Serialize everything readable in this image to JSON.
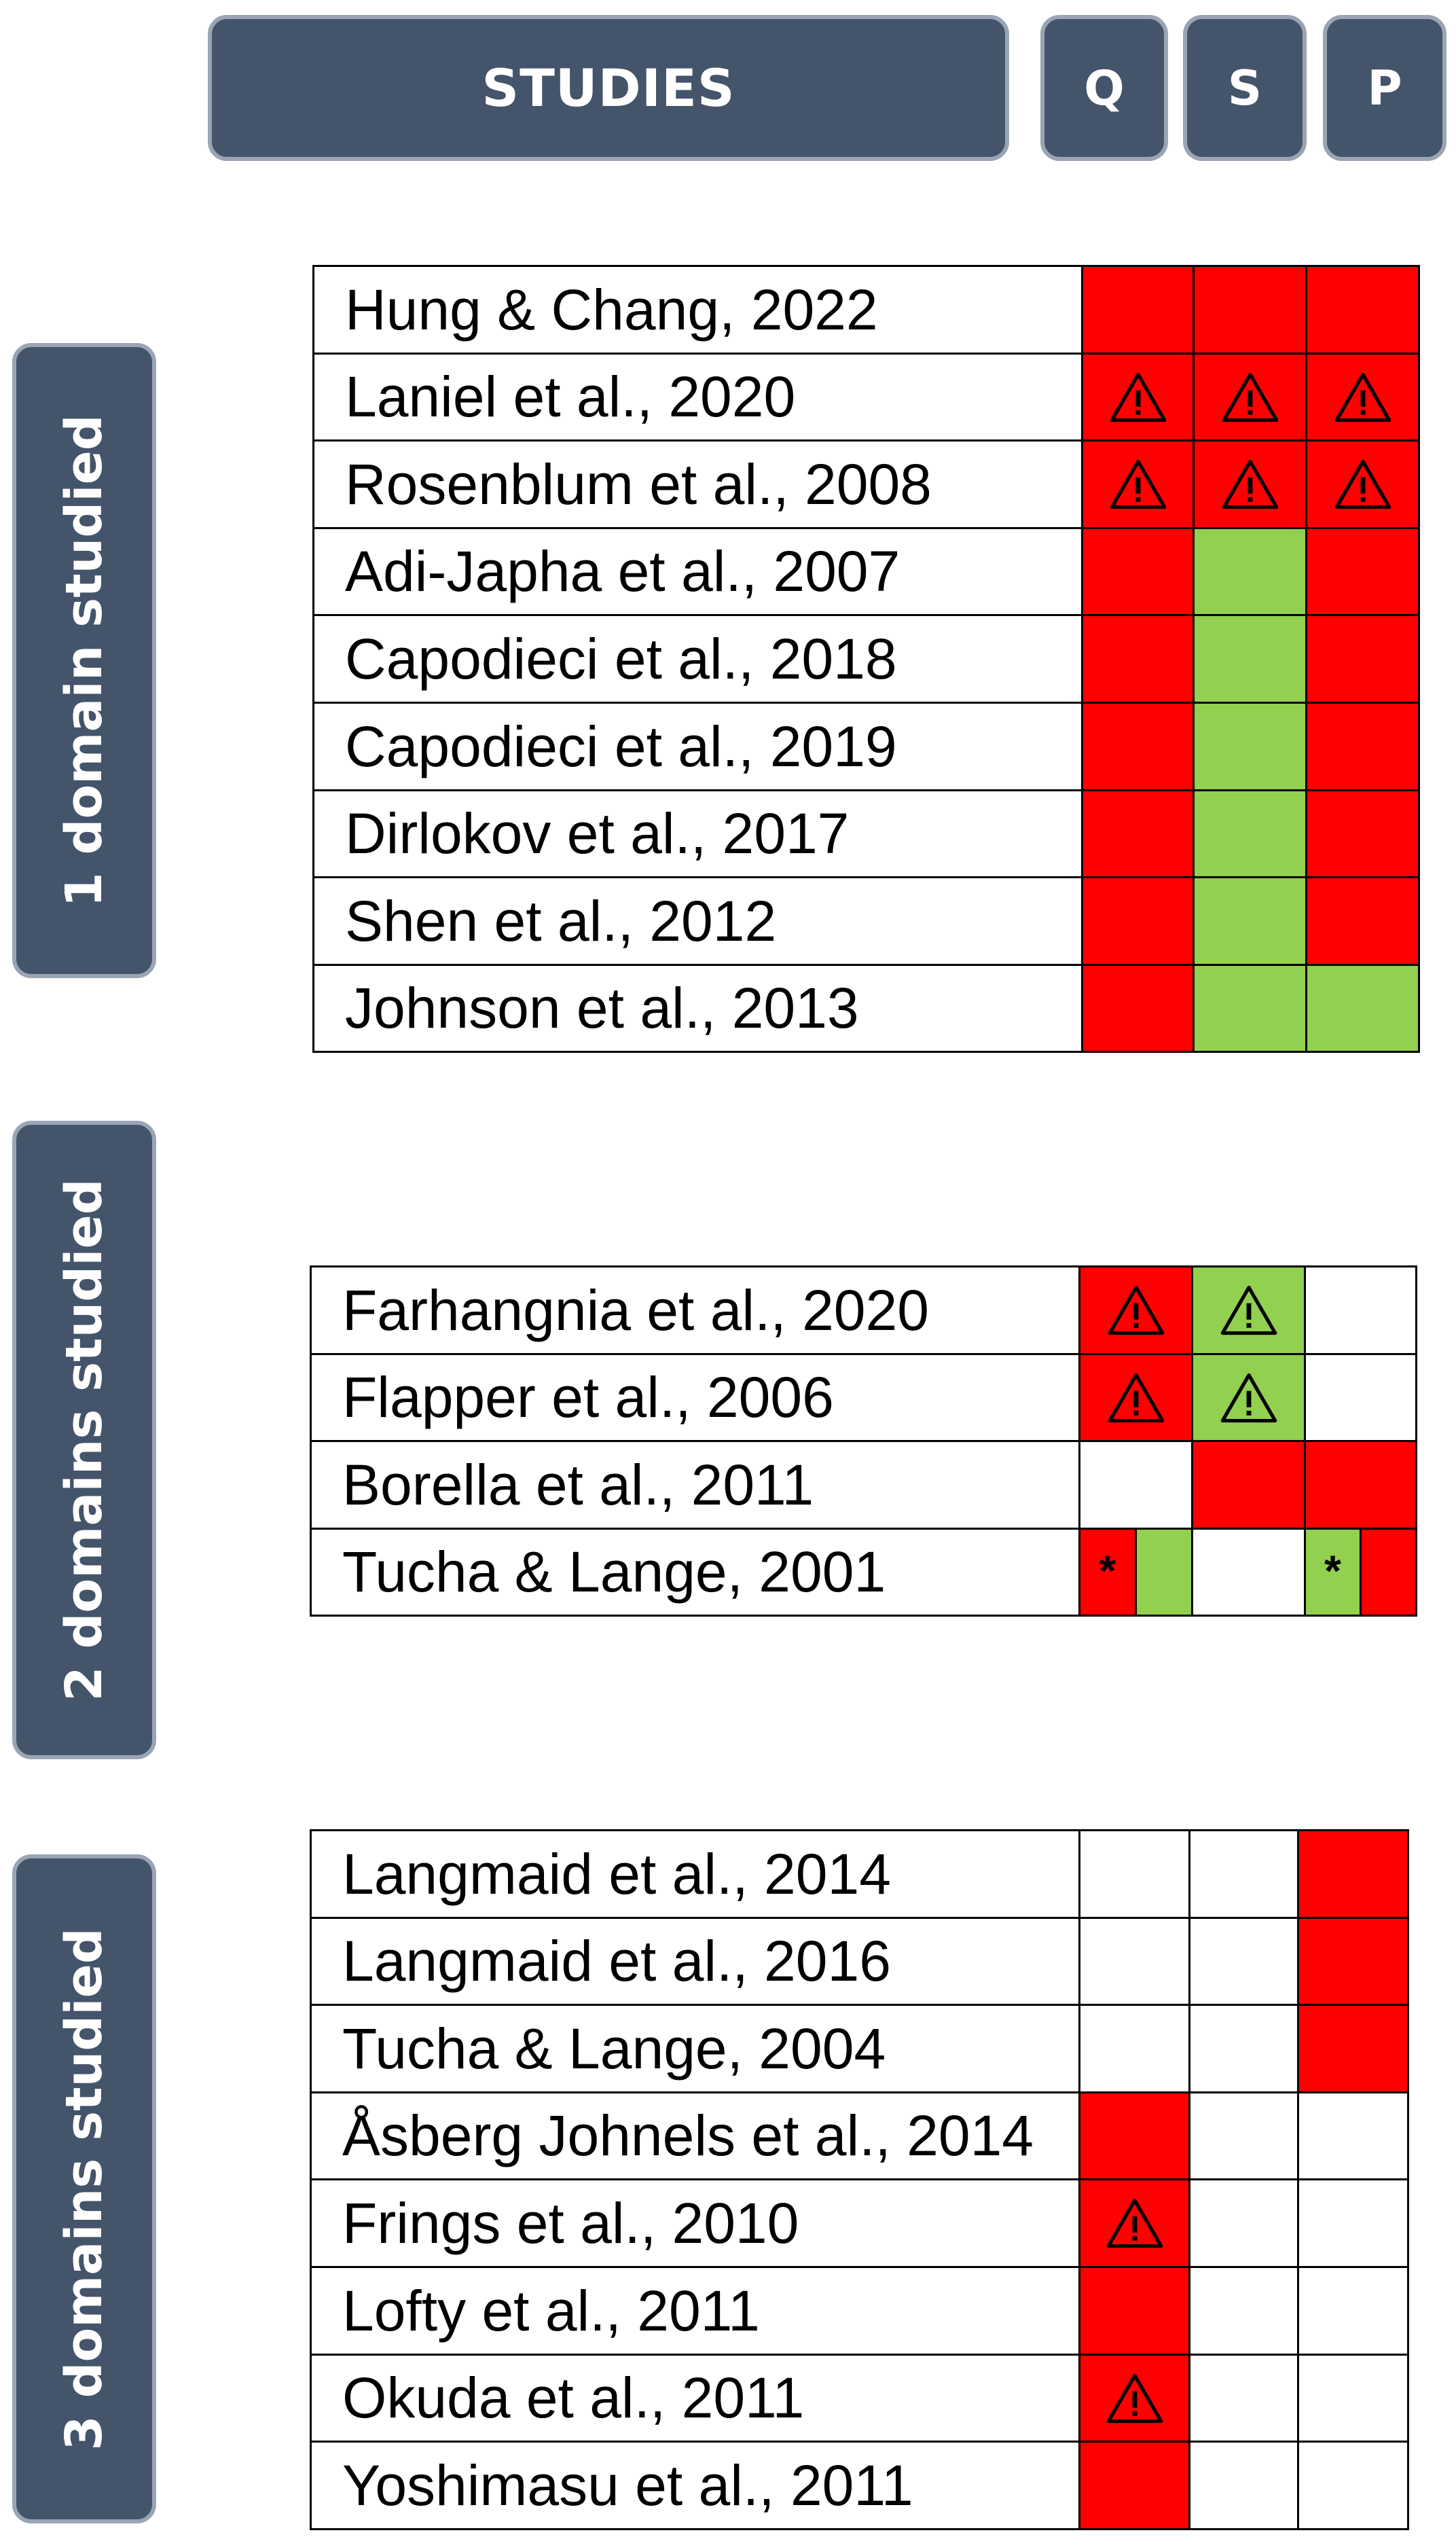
{
  "headers": {
    "studies": "STUDIES",
    "q": "Q",
    "s": "S",
    "p": "P"
  },
  "legend": {
    "red": "#ff0000",
    "green": "#92d050",
    "white": "#ffffff",
    "warning_icon": "warning-triangle-icon",
    "asterisk": "*"
  },
  "sections": [
    {
      "label": "1 domain studied",
      "rows": [
        {
          "study": "Hung & Chang, 2022",
          "q": {
            "fill": "red"
          },
          "s": {
            "fill": "red"
          },
          "p": {
            "fill": "red"
          }
        },
        {
          "study": "Laniel et al., 2020",
          "q": {
            "fill": "red",
            "mark": "warning"
          },
          "s": {
            "fill": "red",
            "mark": "warning"
          },
          "p": {
            "fill": "red",
            "mark": "warning"
          }
        },
        {
          "study": "Rosenblum et al., 2008",
          "q": {
            "fill": "red",
            "mark": "warning"
          },
          "s": {
            "fill": "red",
            "mark": "warning"
          },
          "p": {
            "fill": "red",
            "mark": "warning"
          }
        },
        {
          "study": "Adi-Japha et al., 2007",
          "q": {
            "fill": "red"
          },
          "s": {
            "fill": "green"
          },
          "p": {
            "fill": "red"
          }
        },
        {
          "study": "Capodieci et al., 2018",
          "q": {
            "fill": "red"
          },
          "s": {
            "fill": "green"
          },
          "p": {
            "fill": "red"
          }
        },
        {
          "study": "Capodieci et al., 2019",
          "q": {
            "fill": "red"
          },
          "s": {
            "fill": "green"
          },
          "p": {
            "fill": "red"
          }
        },
        {
          "study": "Dirlokov et al., 2017",
          "q": {
            "fill": "red"
          },
          "s": {
            "fill": "green"
          },
          "p": {
            "fill": "red"
          }
        },
        {
          "study": "Shen et al., 2012",
          "q": {
            "fill": "red"
          },
          "s": {
            "fill": "green"
          },
          "p": {
            "fill": "red"
          }
        },
        {
          "study": "Johnson et al., 2013",
          "q": {
            "fill": "red"
          },
          "s": {
            "fill": "green"
          },
          "p": {
            "fill": "green"
          }
        }
      ]
    },
    {
      "label": "2 domains studied",
      "rows": [
        {
          "study": "Farhangnia et al., 2020",
          "q": {
            "fill": "red",
            "mark": "warning"
          },
          "s": {
            "fill": "green",
            "mark": "warning"
          },
          "p": {
            "fill": "white"
          }
        },
        {
          "study": "Flapper et al., 2006",
          "q": {
            "fill": "red",
            "mark": "warning"
          },
          "s": {
            "fill": "green",
            "mark": "warning"
          },
          "p": {
            "fill": "white"
          }
        },
        {
          "study": "Borella et al., 2011",
          "q": {
            "fill": "white"
          },
          "s": {
            "fill": "red"
          },
          "p": {
            "fill": "red"
          }
        },
        {
          "study": "Tucha & Lange, 2001",
          "q": {
            "split": [
              "red",
              "green"
            ],
            "mark": "*"
          },
          "s": {
            "fill": "white"
          },
          "p": {
            "split": [
              "green",
              "red"
            ],
            "mark": "*"
          }
        }
      ]
    },
    {
      "label": "3 domains studied",
      "rows": [
        {
          "study": "Langmaid et al., 2014",
          "q": {
            "fill": "white"
          },
          "s": {
            "fill": "white"
          },
          "p": {
            "fill": "red"
          }
        },
        {
          "study": "Langmaid et al., 2016",
          "q": {
            "fill": "white"
          },
          "s": {
            "fill": "white"
          },
          "p": {
            "fill": "red"
          }
        },
        {
          "study": "Tucha & Lange, 2004",
          "q": {
            "fill": "white"
          },
          "s": {
            "fill": "white"
          },
          "p": {
            "fill": "red"
          }
        },
        {
          "study": "Åsberg Johnels et al., 2014",
          "q": {
            "fill": "red"
          },
          "s": {
            "fill": "white"
          },
          "p": {
            "fill": "white"
          }
        },
        {
          "study": "Frings et al., 2010",
          "q": {
            "fill": "red",
            "mark": "warning"
          },
          "s": {
            "fill": "white"
          },
          "p": {
            "fill": "white"
          }
        },
        {
          "study": "Lofty et al., 2011",
          "q": {
            "fill": "red"
          },
          "s": {
            "fill": "white"
          },
          "p": {
            "fill": "white"
          }
        },
        {
          "study": "Okuda et al., 2011",
          "q": {
            "fill": "red",
            "mark": "warning"
          },
          "s": {
            "fill": "white"
          },
          "p": {
            "fill": "white"
          }
        },
        {
          "study": "Yoshimasu et al., 2011",
          "q": {
            "fill": "red"
          },
          "s": {
            "fill": "white"
          },
          "p": {
            "fill": "white"
          }
        }
      ]
    }
  ]
}
